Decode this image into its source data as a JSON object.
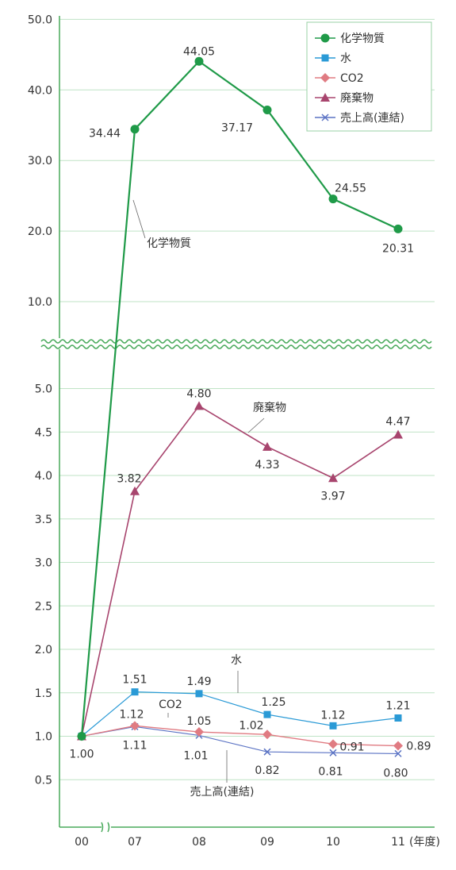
{
  "chart_data": {
    "type": "line",
    "categories": [
      "00",
      "07",
      "08",
      "09",
      "10",
      "11"
    ],
    "x_unit": "(年度)",
    "y_ticks_upper": [
      "10.0",
      "20.0",
      "30.0",
      "40.0",
      "50.0"
    ],
    "y_ticks_lower": [
      "0.5",
      "1.0",
      "1.5",
      "2.0",
      "2.5",
      "3.0",
      "3.5",
      "4.0",
      "4.5",
      "5.0"
    ],
    "ylim_lower": [
      0,
      5.4
    ],
    "ylim_upper": [
      5,
      50
    ],
    "axis_break": true,
    "grid": true,
    "legend_position": "top-right",
    "series": [
      {
        "name": "化学物質",
        "color": "#1f9a48",
        "marker": "circle",
        "values": [
          1.0,
          34.44,
          44.05,
          37.17,
          24.55,
          20.31
        ],
        "labels": [
          "",
          "34.44",
          "44.05",
          "37.17",
          "24.55",
          "20.31"
        ],
        "annotation": "化学物質"
      },
      {
        "name": "水",
        "color": "#2a9ad6",
        "marker": "square",
        "values": [
          1.0,
          1.51,
          1.49,
          1.25,
          1.12,
          1.21
        ],
        "labels": [
          "",
          "1.51",
          "1.49",
          "1.25",
          "1.12",
          "1.21"
        ],
        "annotation": "水"
      },
      {
        "name": "CO2",
        "color": "#e07b82",
        "marker": "diamond",
        "values": [
          1.0,
          1.12,
          1.05,
          1.02,
          0.91,
          0.89
        ],
        "labels": [
          "",
          "1.12",
          "1.05",
          "1.02",
          "0.91",
          "0.89"
        ],
        "annotation": "CO2"
      },
      {
        "name": "廃棄物",
        "color": "#a8456e",
        "marker": "triangle",
        "values": [
          1.0,
          3.82,
          4.8,
          4.33,
          3.97,
          4.47
        ],
        "labels": [
          "",
          "3.82",
          "4.80",
          "4.33",
          "3.97",
          "4.47"
        ],
        "annotation": "廃棄物"
      },
      {
        "name": "売上高(連結)",
        "color": "#5b73c4",
        "marker": "x",
        "values": [
          1.0,
          1.11,
          1.01,
          0.82,
          0.81,
          0.8
        ],
        "labels": [
          "1.00",
          "1.11",
          "1.01",
          "0.82",
          "0.81",
          "0.80"
        ],
        "annotation": "売上高(連結)"
      }
    ]
  }
}
